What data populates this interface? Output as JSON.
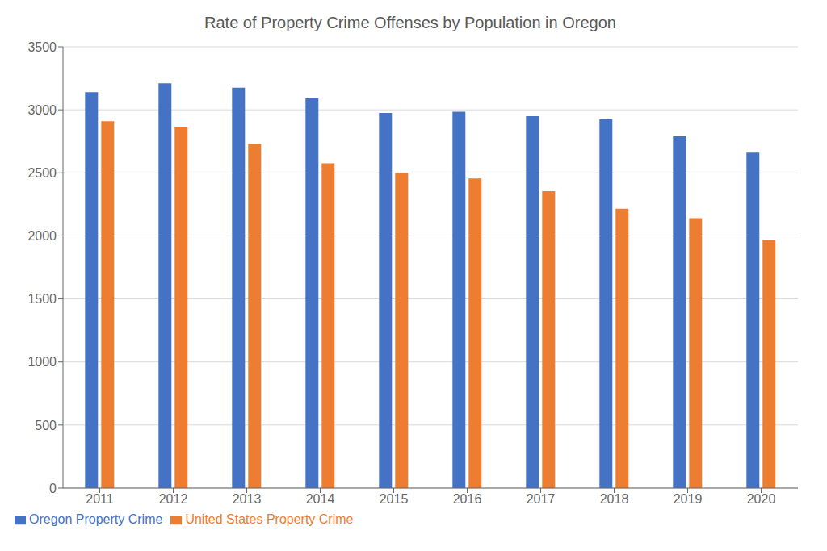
{
  "chart_data": {
    "type": "bar",
    "title": "Rate of Property Crime Offenses by Population in Oregon",
    "categories": [
      "2011",
      "2012",
      "2013",
      "2014",
      "2015",
      "2016",
      "2017",
      "2018",
      "2019",
      "2020"
    ],
    "series": [
      {
        "name": "Oregon Property Crime",
        "color": "#4472C4",
        "values": [
          3140,
          3210,
          3175,
          3090,
          2975,
          2985,
          2950,
          2925,
          2790,
          2660
        ]
      },
      {
        "name": "United States Property Crime",
        "color": "#ED7D31",
        "values": [
          2910,
          2860,
          2730,
          2575,
          2500,
          2455,
          2355,
          2215,
          2140,
          1965
        ]
      }
    ],
    "ylim": [
      0,
      3500
    ],
    "yticks": [
      0,
      500,
      1000,
      1500,
      2000,
      2500,
      3000,
      3500
    ],
    "grid": true,
    "legend": "lower left"
  }
}
